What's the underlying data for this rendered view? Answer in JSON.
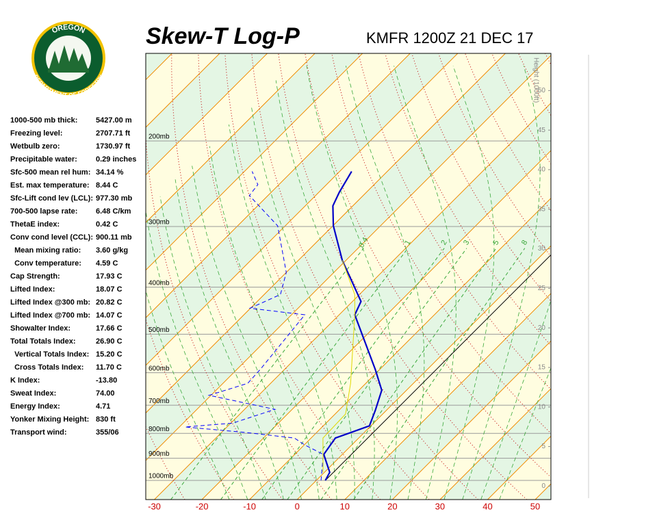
{
  "logo": {
    "top": "OREGON",
    "bottom": "DEPARTMENT OF FORESTRY"
  },
  "stats": {
    "rows": [
      [
        "1000-500 mb thick:",
        "5427.00 m"
      ],
      [
        "Freezing level:",
        "2707.71 ft"
      ],
      [
        "Wetbulb zero:",
        "1730.97 ft"
      ],
      [
        "Precipitable water:",
        "0.29 inches"
      ],
      [
        "Sfc-500 mean rel hum:",
        "34.14 %"
      ],
      [
        "Est. max temperature:",
        "8.44 C"
      ],
      [
        "Sfc-Lift cond lev (LCL):",
        "977.30 mb"
      ],
      [
        "700-500 lapse rate:",
        "6.48 C/km"
      ],
      [
        "ThetaE index:",
        "0.42 C"
      ],
      [
        "Conv cond level (CCL):",
        "900.11 mb"
      ],
      [
        "  Mean mixing ratio:",
        "3.60 g/kg"
      ],
      [
        "  Conv temperature:",
        "4.59 C"
      ],
      [
        "Cap Strength:",
        "17.93 C"
      ],
      [
        "Lifted Index:",
        "18.07 C"
      ],
      [
        "Lifted Index @300 mb:",
        "20.82 C"
      ],
      [
        "Lifted Index @700 mb:",
        "14.07 C"
      ],
      [
        "Showalter Index:",
        "17.66 C"
      ],
      [
        "Total Totals Index:",
        "26.90 C"
      ],
      [
        "  Vertical Totals Index:",
        "15.20 C"
      ],
      [
        "  Cross Totals Index:",
        "11.70 C"
      ],
      [
        "K Index:",
        "-13.80"
      ],
      [
        "Sweat Index:",
        "74.00"
      ],
      [
        "Energy Index:",
        "4.71"
      ],
      [
        "Yonker Mixing Height:",
        "830 ft"
      ],
      [
        "Transport wind:",
        "355/06"
      ]
    ]
  },
  "chart_data": {
    "type": "skewt",
    "title": "Skew-T Log-P",
    "subtitle": "KMFR 1200Z 21 DEC 17",
    "xlim": [
      -31.8,
      53.3
    ],
    "xticks": [
      -30,
      -20,
      -10,
      0,
      10,
      20,
      30,
      40,
      50
    ],
    "ylim": [
      1095,
      132
    ],
    "log_y": true,
    "yticks": [
      {
        "value": 200,
        "label": "200mb"
      },
      {
        "value": 300,
        "label": "300mb"
      },
      {
        "value": 400,
        "label": "400mb"
      },
      {
        "value": 500,
        "label": "500mb"
      },
      {
        "value": 600,
        "label": "600mb"
      },
      {
        "value": 700,
        "label": "700mb"
      },
      {
        "value": 800,
        "label": "800mb"
      },
      {
        "value": 900,
        "label": "900mb"
      },
      {
        "value": 1000,
        "label": "1000mb"
      }
    ],
    "y2label": "Height (1000ft)",
    "y2lim": [
      -1.7,
      54.7
    ],
    "y2ticks": [
      0,
      5,
      10,
      15,
      20,
      25,
      30,
      35,
      40,
      45,
      50
    ],
    "mixing_ratios": [
      0.4,
      1,
      2,
      3,
      5,
      8
    ],
    "series": [
      {
        "color": "#0000c8",
        "style": "solid",
        "pressure": [
          1000,
          962,
          884,
          818,
          772,
          718,
          652,
          591,
          456,
          428,
          352,
          299,
          272,
          255,
          231
        ],
        "values": [
          1.9,
          1.1,
          -3.9,
          -4.9,
          -0.3,
          -2.3,
          -5.2,
          -10.9,
          -26.7,
          -28.2,
          -40.8,
          -49.9,
          -54.2,
          -55.7,
          -57.5
        ]
      },
      {
        "color": "#0000ff",
        "style": "dashed",
        "pressure": [
          1000,
          884,
          845,
          818,
          797,
          776,
          762,
          714,
          668,
          631,
          591,
          456,
          442,
          414,
          373,
          299,
          259,
          246,
          231
        ],
        "values": [
          1.0,
          -4.0,
          -9.9,
          -13.5,
          -24.7,
          -38.8,
          -29.6,
          -23.6,
          -40.4,
          -34.8,
          -35.1,
          -37.2,
          -50.1,
          -46.6,
          -50.0,
          -61.6,
          -73.9,
          -74.4,
          -78.4
        ]
      },
      {
        "color": "#e0d800",
        "style": "solid",
        "pressure": [
          962,
          818,
          730,
          631,
          456,
          414,
          352
        ],
        "values": [
          -0.3,
          -7.5,
          -7.8,
          -13.2,
          -26.7,
          -31.0,
          -40.8
        ]
      }
    ]
  }
}
